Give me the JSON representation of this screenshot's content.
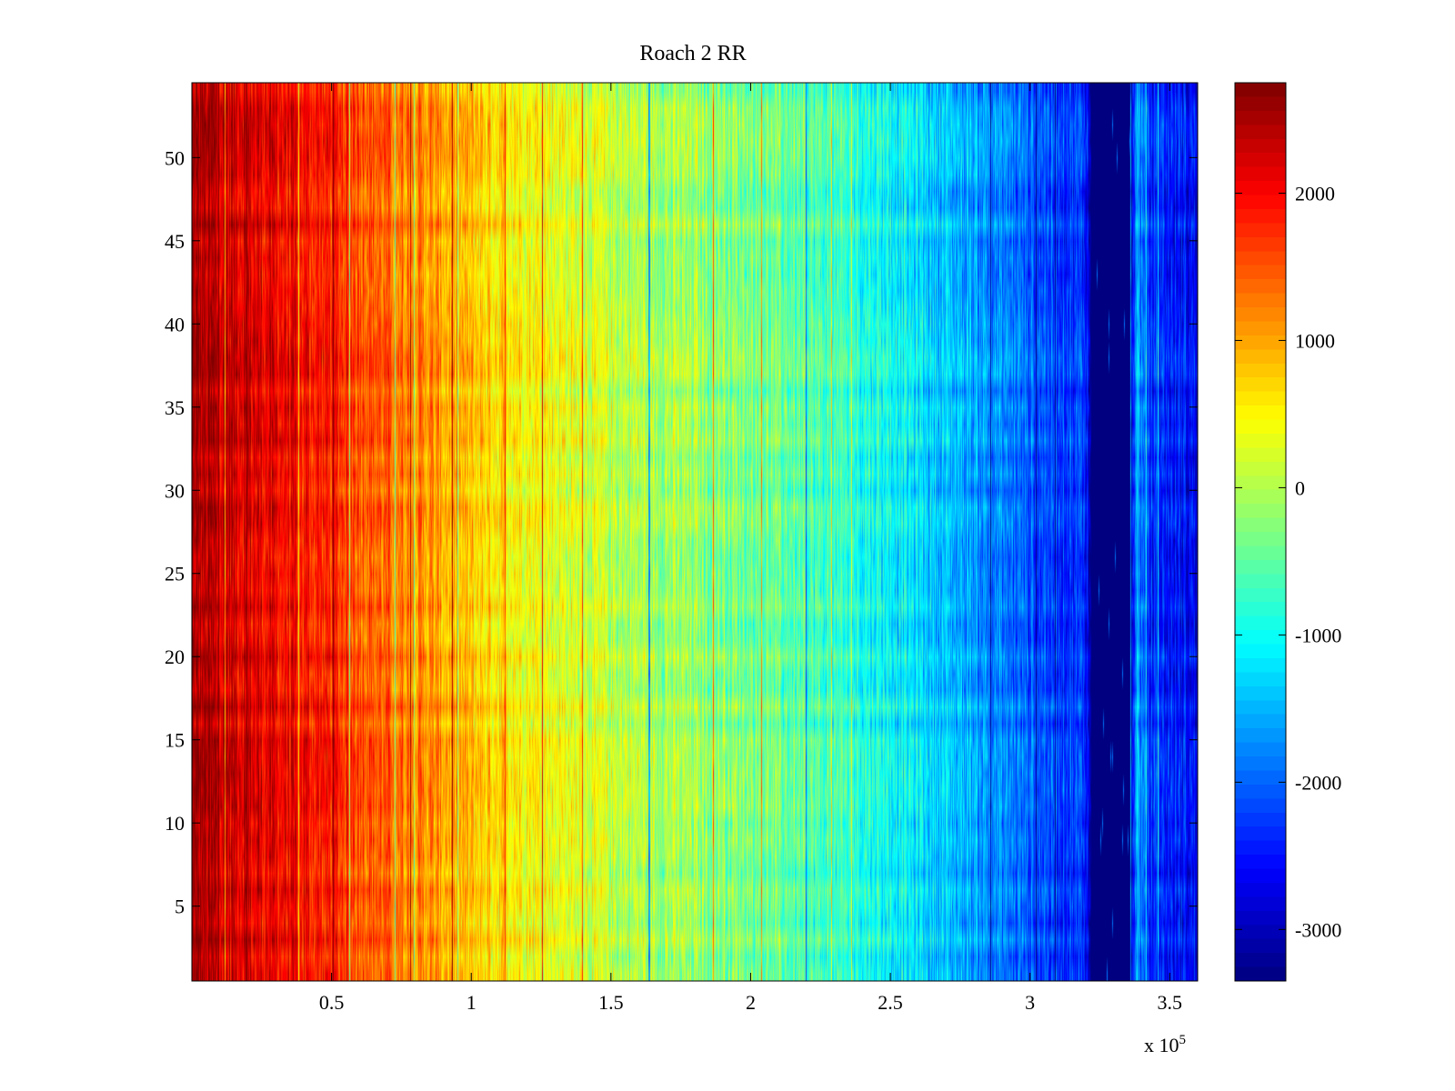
{
  "chart_data": {
    "type": "heatmap",
    "title": "Roach 2 RR",
    "xlabel": "",
    "ylabel": "",
    "x_exponent_label": "x 10",
    "x_exponent_power": "5",
    "xlim": [
      0,
      360000
    ],
    "ylim": [
      0.5,
      54.5
    ],
    "rows": 54,
    "x_ticks": [
      {
        "value": 50000,
        "label": "0.5"
      },
      {
        "value": 100000,
        "label": "1"
      },
      {
        "value": 150000,
        "label": "1.5"
      },
      {
        "value": 200000,
        "label": "2"
      },
      {
        "value": 250000,
        "label": "2.5"
      },
      {
        "value": 300000,
        "label": "3"
      },
      {
        "value": 350000,
        "label": "3.5"
      }
    ],
    "y_ticks": [
      {
        "value": 5,
        "label": "5"
      },
      {
        "value": 10,
        "label": "10"
      },
      {
        "value": 15,
        "label": "15"
      },
      {
        "value": 20,
        "label": "20"
      },
      {
        "value": 25,
        "label": "25"
      },
      {
        "value": 30,
        "label": "30"
      },
      {
        "value": 35,
        "label": "35"
      },
      {
        "value": 40,
        "label": "40"
      },
      {
        "value": 45,
        "label": "45"
      },
      {
        "value": 50,
        "label": "50"
      }
    ],
    "colorbar": {
      "colormap": "jet",
      "clim": [
        -3350,
        2750
      ],
      "ticks": [
        {
          "value": 2000,
          "label": "2000"
        },
        {
          "value": 1000,
          "label": "1000"
        },
        {
          "value": 0,
          "label": "0"
        },
        {
          "value": -1000,
          "label": "-1000"
        },
        {
          "value": -2000,
          "label": "-2000"
        },
        {
          "value": -3000,
          "label": "-3000"
        }
      ]
    },
    "column_trend": [
      {
        "x": 0,
        "value": 2500
      },
      {
        "x": 20000,
        "value": 2200
      },
      {
        "x": 50000,
        "value": 1800
      },
      {
        "x": 100000,
        "value": 800
      },
      {
        "x": 150000,
        "value": 100
      },
      {
        "x": 200000,
        "value": -300
      },
      {
        "x": 250000,
        "value": -1000
      },
      {
        "x": 300000,
        "value": -2000
      },
      {
        "x": 320000,
        "value": -2300
      },
      {
        "x": 322000,
        "value": -3350
      },
      {
        "x": 336000,
        "value": -3350
      },
      {
        "x": 338000,
        "value": -1500
      },
      {
        "x": 342000,
        "value": -2300
      },
      {
        "x": 360000,
        "value": -2600
      }
    ],
    "grid": false
  }
}
